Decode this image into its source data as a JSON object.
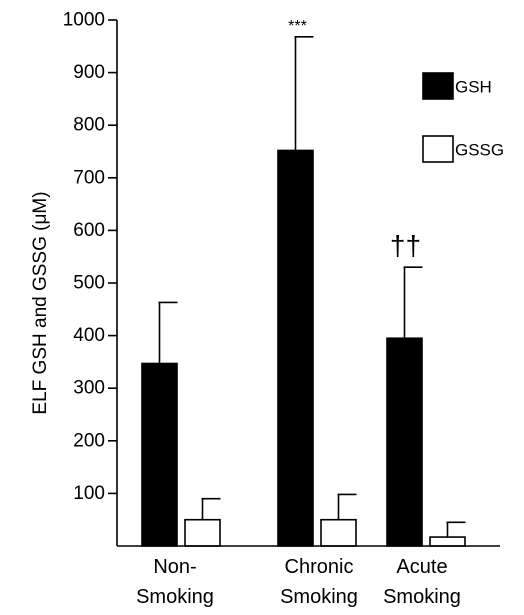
{
  "chart_data": {
    "type": "bar",
    "ylabel": "ELF GSH and GSSG (μM)",
    "ylim": [
      0,
      1000
    ],
    "yticks": [
      100,
      200,
      300,
      400,
      500,
      600,
      700,
      800,
      900,
      1000
    ],
    "categories": [
      {
        "line1": "Non-",
        "line2": "Smoking"
      },
      {
        "line1": "Chronic",
        "line2": "Smoking"
      },
      {
        "line1": "Acute",
        "line2": "Smoking"
      }
    ],
    "series": [
      {
        "name": "GSH",
        "values": [
          347,
          752,
          395
        ],
        "errors": [
          116,
          216,
          135
        ],
        "fill": "#000000"
      },
      {
        "name": "GSSG",
        "values": [
          50,
          50,
          17
        ],
        "errors": [
          40,
          48,
          28
        ],
        "fill": "#ffffff"
      }
    ],
    "annotations": [
      {
        "category": 1,
        "series": 0,
        "text": "***"
      },
      {
        "category": 2,
        "series": 0,
        "text": "††"
      }
    ],
    "legend": {
      "position": "top-right"
    }
  }
}
